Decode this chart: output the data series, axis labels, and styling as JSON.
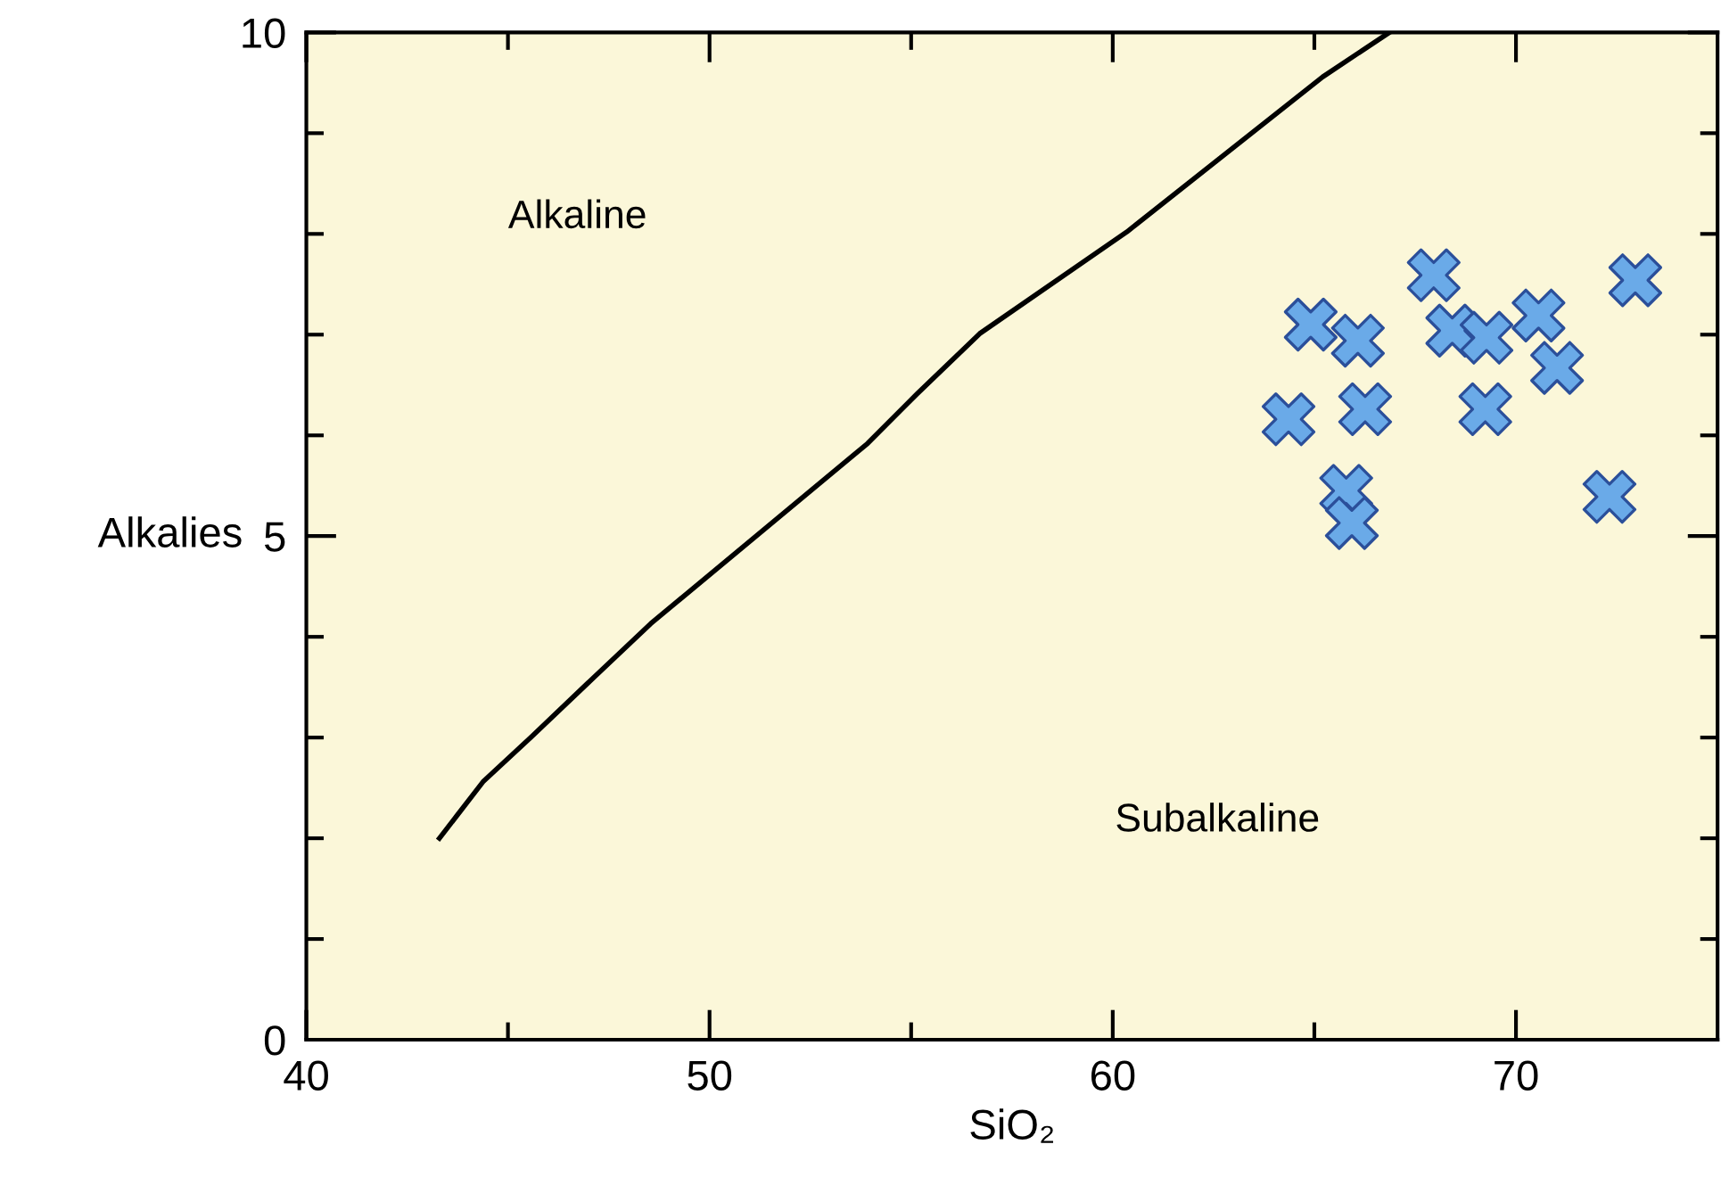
{
  "chart_data": {
    "type": "scatter",
    "xlabel": "SiO₂",
    "ylabel": "Alkalies",
    "xlim": [
      40,
      75
    ],
    "ylim": [
      0,
      10
    ],
    "xticks": [
      40,
      {
        "value": 45,
        "label": null
      },
      50,
      {
        "value": 55,
        "label": null
      },
      60,
      {
        "value": 65,
        "label": null
      },
      70
    ],
    "yticks": [
      0,
      {
        "value": 1,
        "label": null
      },
      {
        "value": 2,
        "label": null
      },
      {
        "value": 3,
        "label": null
      },
      {
        "value": 4,
        "label": null
      },
      5,
      {
        "value": 6,
        "label": null
      },
      {
        "value": 7,
        "label": null
      },
      {
        "value": 8,
        "label": null
      },
      {
        "value": 9,
        "label": null
      },
      10
    ],
    "grid": false,
    "legend": false,
    "series": [
      {
        "type": "line",
        "color": "#000000",
        "marker": "none",
        "line_style": "solid",
        "x": [
          43.3,
          44.38,
          45.59,
          46.98,
          48.54,
          53.92,
          55.14,
          56.7,
          60.35,
          65.21,
          66.86
        ],
        "values": [
          2.0,
          2.56,
          3.01,
          3.54,
          4.13,
          5.92,
          6.41,
          7.01,
          8.02,
          9.56,
          10.0
        ]
      },
      {
        "color": "#6aaae8",
        "marker": "cross",
        "x": [
          64.91,
          66.08,
          67.96,
          68.42,
          69.27,
          70.56,
          72.96,
          64.36,
          66.26,
          69.24,
          71.02,
          65.79,
          65.93,
          72.32
        ],
        "values": [
          7.1,
          6.94,
          7.59,
          7.04,
          6.97,
          7.19,
          7.54,
          6.16,
          6.26,
          6.26,
          6.67,
          5.45,
          5.13,
          5.39
        ]
      }
    ],
    "annotations": [
      "Alkaline",
      "Subalkaline"
    ]
  }
}
